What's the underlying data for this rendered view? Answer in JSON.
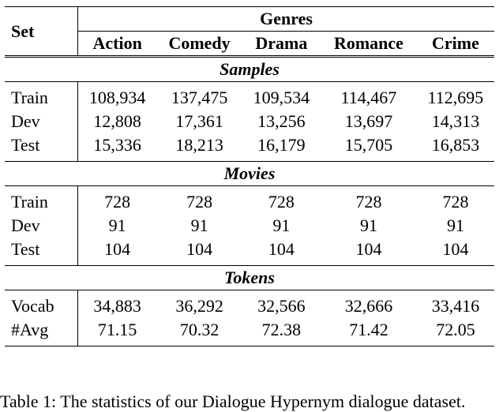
{
  "header": {
    "set_label": "Set",
    "genres_label": "Genres",
    "genres": [
      "Action",
      "Comedy",
      "Drama",
      "Romance",
      "Crime"
    ]
  },
  "sections": [
    {
      "title": "Samples",
      "rows": [
        {
          "label": "Train",
          "values": [
            "108,934",
            "137,475",
            "109,534",
            "114,467",
            "112,695"
          ]
        },
        {
          "label": "Dev",
          "values": [
            "12,808",
            "17,361",
            "13,256",
            "13,697",
            "14,313"
          ]
        },
        {
          "label": "Test",
          "values": [
            "15,336",
            "18,213",
            "16,179",
            "15,705",
            "16,853"
          ]
        }
      ]
    },
    {
      "title": "Movies",
      "rows": [
        {
          "label": "Train",
          "values": [
            "728",
            "728",
            "728",
            "728",
            "728"
          ]
        },
        {
          "label": "Dev",
          "values": [
            "91",
            "91",
            "91",
            "91",
            "91"
          ]
        },
        {
          "label": "Test",
          "values": [
            "104",
            "104",
            "104",
            "104",
            "104"
          ]
        }
      ]
    },
    {
      "title": "Tokens",
      "rows": [
        {
          "label": "Vocab",
          "values": [
            "34,883",
            "36,292",
            "32,566",
            "32,666",
            "33,416"
          ]
        },
        {
          "label": "#Avg",
          "values": [
            "71.15",
            "70.32",
            "72.38",
            "71.42",
            "72.05"
          ]
        }
      ]
    }
  ],
  "caption": "Table 1: The statistics of our Dialogue Hypernym dialogue dataset."
}
